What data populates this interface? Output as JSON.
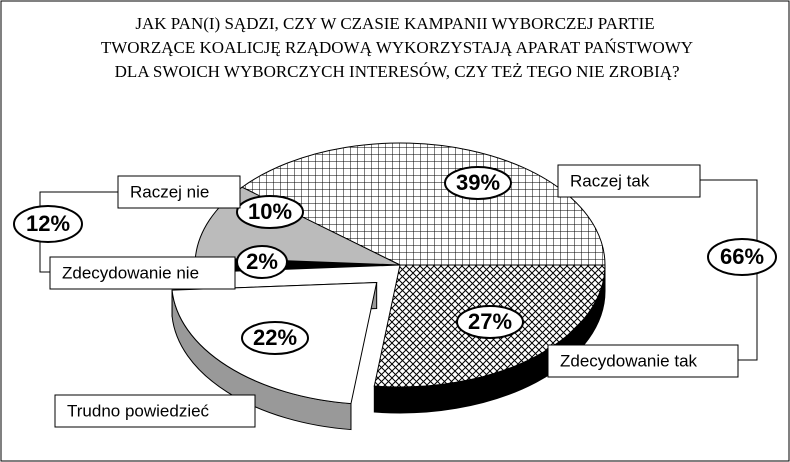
{
  "chart_data": {
    "type": "pie",
    "title": "JAK PAN(I) SĄDZI, CZY W CZASIE KAMPANII WYBORCZEJ PARTIE TWORZĄCE KOALICJĘ RZĄDOWĄ WYKORZYSTAJĄ APARAT PAŃSTWOWY DLA SWOICH WYBORCZYCH INTERESÓW, CZY TEŻ TEGO NIE ZROBIĄ?",
    "categories": [
      "Raczej tak",
      "Zdecydowanie tak",
      "Trudno powiedzieć",
      "Zdecydowanie nie",
      "Raczej nie"
    ],
    "values": [
      39,
      27,
      22,
      2,
      10
    ],
    "value_labels": [
      "39%",
      "27%",
      "22%",
      "2%",
      "10%"
    ],
    "groups": [
      {
        "value": 66,
        "label": "66%"
      },
      {
        "value": 12,
        "label": "12%"
      }
    ]
  }
}
